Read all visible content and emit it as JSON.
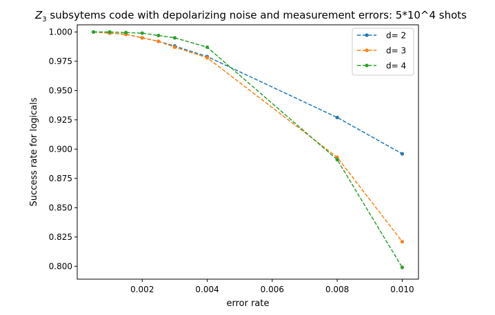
{
  "chart_data": {
    "type": "line",
    "title_prefix": "Z",
    "title_subscript": "3",
    "title_rest": " subsytems code with depolarizing noise and measurement errors: 5*10^4 shots",
    "xlabel": "error rate",
    "ylabel": "Success rate for logicals",
    "xlim": [
      0.0,
      0.0105
    ],
    "ylim": [
      0.789,
      1.0061
    ],
    "xticks": [
      0.002,
      0.004,
      0.006,
      0.008,
      0.01
    ],
    "xtick_labels": [
      "0.002",
      "0.004",
      "0.006",
      "0.008",
      "0.010"
    ],
    "yticks": [
      0.8,
      0.825,
      0.85,
      0.875,
      0.9,
      0.925,
      0.95,
      0.975,
      1.0
    ],
    "ytick_labels": [
      "0.800",
      "0.825",
      "0.850",
      "0.875",
      "0.900",
      "0.925",
      "0.950",
      "0.975",
      "1.000"
    ],
    "grid": false,
    "legend_position": "top-right",
    "series": [
      {
        "name": "d= 2",
        "color": "#1f77b4",
        "x": [
          0.0005,
          0.001,
          0.0015,
          0.002,
          0.0025,
          0.003,
          0.004,
          0.008,
          0.01
        ],
        "y": [
          1.0,
          0.999,
          0.998,
          0.995,
          0.992,
          0.988,
          0.979,
          0.927,
          0.896
        ]
      },
      {
        "name": "d= 3",
        "color": "#ff7f0e",
        "x": [
          0.0005,
          0.001,
          0.0015,
          0.002,
          0.0025,
          0.003,
          0.004,
          0.008,
          0.01
        ],
        "y": [
          1.0,
          0.999,
          0.998,
          0.995,
          0.992,
          0.987,
          0.978,
          0.893,
          0.821
        ]
      },
      {
        "name": "d= 4",
        "color": "#2ca02c",
        "x": [
          0.0005,
          0.001,
          0.0015,
          0.002,
          0.0025,
          0.003,
          0.004,
          0.008,
          0.01
        ],
        "y": [
          1.0,
          1.0,
          0.9995,
          0.999,
          0.997,
          0.995,
          0.987,
          0.891,
          0.799
        ]
      }
    ]
  }
}
